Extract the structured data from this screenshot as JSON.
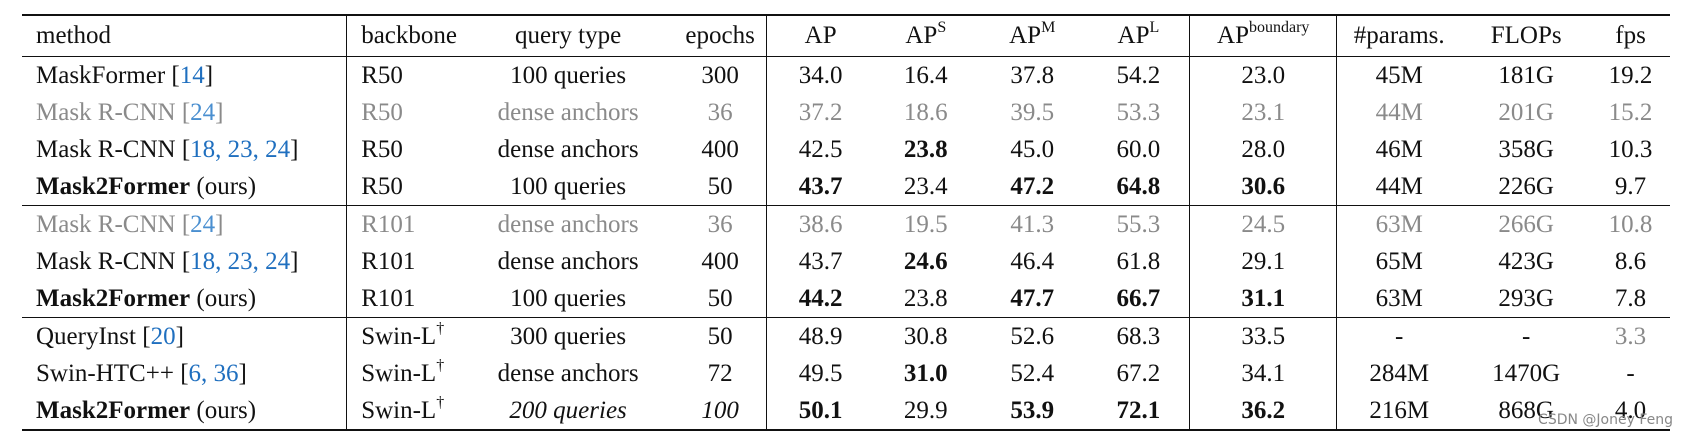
{
  "header": {
    "method": "method",
    "backbone": "backbone",
    "query_type": "query type",
    "epochs": "epochs",
    "ap": "AP",
    "aps_base": "AP",
    "aps_sup": "S",
    "apm_base": "AP",
    "apm_sup": "M",
    "apl_base": "AP",
    "apl_sup": "L",
    "apb_base": "AP",
    "apb_sup": "boundary",
    "params": "#params.",
    "flops": "FLOPs",
    "fps": "fps"
  },
  "rows": [
    {
      "method": "MaskFormer",
      "method_bold": false,
      "refs": "14",
      "backbone": "R50",
      "backbone_sup": "",
      "query": "100 queries",
      "epochs": "300",
      "ap": "34.0",
      "aps": "16.4",
      "apm": "37.8",
      "apl": "54.2",
      "apb": "23.0",
      "params": "45M",
      "flops": "181G",
      "fps": "19.2",
      "gray": false,
      "group_first": false
    },
    {
      "method": "Mask R-CNN",
      "method_bold": false,
      "refs": "24",
      "backbone": "R50",
      "backbone_sup": "",
      "query": "dense anchors",
      "epochs": "36",
      "ap": "37.2",
      "aps": "18.6",
      "apm": "39.5",
      "apl": "53.3",
      "apb": "23.1",
      "params": "44M",
      "flops": "201G",
      "fps": "15.2",
      "gray": true,
      "group_first": false
    },
    {
      "method": "Mask R-CNN",
      "method_bold": false,
      "refs": "18, 23, 24",
      "backbone": "R50",
      "backbone_sup": "",
      "query": "dense anchors",
      "epochs": "400",
      "ap": "42.5",
      "aps": "23.8",
      "apm": "45.0",
      "apl": "60.0",
      "apb": "28.0",
      "params": "46M",
      "flops": "358G",
      "fps": "10.3",
      "gray": false,
      "group_first": false,
      "bold": [
        "aps"
      ]
    },
    {
      "method": "Mask2Former",
      "method_bold": true,
      "suffix": " (ours)",
      "refs": "",
      "backbone": "R50",
      "backbone_sup": "",
      "query": "100 queries",
      "epochs": "50",
      "ap": "43.7",
      "aps": "23.4",
      "apm": "47.2",
      "apl": "64.8",
      "apb": "30.6",
      "params": "44M",
      "flops": "226G",
      "fps": "9.7",
      "gray": false,
      "group_first": false,
      "bold": [
        "ap",
        "apm",
        "apl",
        "apb"
      ]
    },
    {
      "method": "Mask R-CNN",
      "method_bold": false,
      "refs": "24",
      "backbone": "R101",
      "backbone_sup": "",
      "query": "dense anchors",
      "epochs": "36",
      "ap": "38.6",
      "aps": "19.5",
      "apm": "41.3",
      "apl": "55.3",
      "apb": "24.5",
      "params": "63M",
      "flops": "266G",
      "fps": "10.8",
      "gray": true,
      "group_first": true
    },
    {
      "method": "Mask R-CNN",
      "method_bold": false,
      "refs": "18, 23, 24",
      "backbone": "R101",
      "backbone_sup": "",
      "query": "dense anchors",
      "epochs": "400",
      "ap": "43.7",
      "aps": "24.6",
      "apm": "46.4",
      "apl": "61.8",
      "apb": "29.1",
      "params": "65M",
      "flops": "423G",
      "fps": "8.6",
      "gray": false,
      "group_first": false,
      "bold": [
        "aps"
      ]
    },
    {
      "method": "Mask2Former",
      "method_bold": true,
      "suffix": " (ours)",
      "refs": "",
      "backbone": "R101",
      "backbone_sup": "",
      "query": "100 queries",
      "epochs": "50",
      "ap": "44.2",
      "aps": "23.8",
      "apm": "47.7",
      "apl": "66.7",
      "apb": "31.1",
      "params": "63M",
      "flops": "293G",
      "fps": "7.8",
      "gray": false,
      "group_first": false,
      "bold": [
        "ap",
        "apm",
        "apl",
        "apb"
      ]
    },
    {
      "method": "QueryInst",
      "method_bold": false,
      "refs": "20",
      "backbone": "Swin-L",
      "backbone_sup": "†",
      "query": "300 queries",
      "epochs": "50",
      "ap": "48.9",
      "aps": "30.8",
      "apm": "52.6",
      "apl": "68.3",
      "apb": "33.5",
      "params": "-",
      "flops": "-",
      "fps": "3.3",
      "gray": false,
      "group_first": true,
      "gray_cells": [
        "fps"
      ]
    },
    {
      "method": "Swin-HTC++",
      "method_bold": false,
      "refs": "6, 36",
      "backbone": "Swin-L",
      "backbone_sup": "†",
      "query": "dense anchors",
      "epochs": "72",
      "ap": "49.5",
      "aps": "31.0",
      "apm": "52.4",
      "apl": "67.2",
      "apb": "34.1",
      "params": "284M",
      "flops": "1470G",
      "fps": "-",
      "gray": false,
      "group_first": false,
      "bold": [
        "aps"
      ]
    },
    {
      "method": "Mask2Former",
      "method_bold": true,
      "suffix": " (ours)",
      "refs": "",
      "backbone": "Swin-L",
      "backbone_sup": "†",
      "query": "200 queries",
      "epochs": "100",
      "ap": "50.1",
      "aps": "29.9",
      "apm": "53.9",
      "apl": "72.1",
      "apb": "36.2",
      "params": "216M",
      "flops": "868G",
      "fps": "4.0",
      "gray": false,
      "group_first": false,
      "italic": [
        "query",
        "epochs"
      ],
      "bold": [
        "ap",
        "apm",
        "apl",
        "apb"
      ]
    }
  ],
  "watermark": "CSDN @Joney Feng"
}
